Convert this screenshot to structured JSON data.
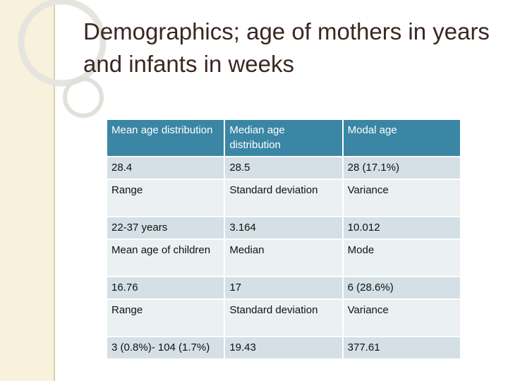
{
  "title": "Demographics; age of mothers in years and infants in weeks",
  "table": {
    "header": [
      "Mean age distribution",
      "Median age distribution",
      "Modal age"
    ],
    "rows": [
      [
        "28.4",
        "28.5",
        "28 (17.1%)"
      ],
      [
        "Range",
        "Standard deviation",
        "Variance"
      ],
      [
        "22-37 years",
        "3.164",
        "10.012"
      ],
      [
        "Mean age of children",
        "Median",
        "Mode"
      ],
      [
        "16.76",
        "17",
        "6 (28.6%)"
      ],
      [
        "Range",
        "Standard deviation",
        "Variance"
      ],
      [
        "3 (0.8%)- 104 (1.7%)",
        "19.43",
        "377.61"
      ]
    ]
  },
  "colors": {
    "header_bg": "#3a86a4",
    "row_light": "#d4dfe6",
    "row_pale": "#ebf0f3",
    "side_band": "#f8f2dc",
    "title_text": "#3a2722"
  }
}
